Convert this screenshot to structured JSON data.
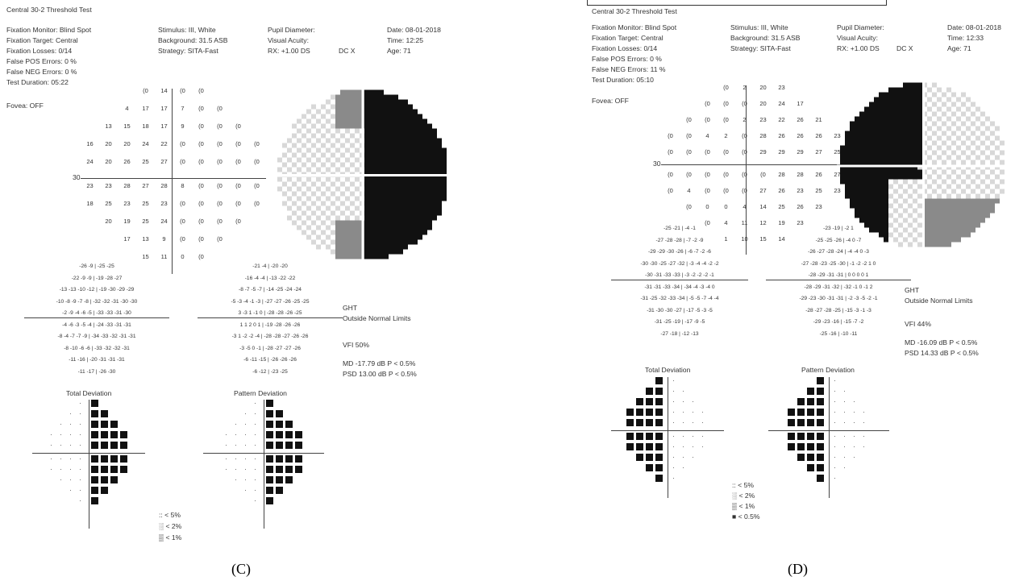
{
  "captions": {
    "c": "(C)",
    "d": "(D)"
  },
  "panel_c": {
    "title": "Central 30-2 Threshold Test",
    "col1": [
      "Fixation Monitor: Blind Spot",
      "Fixation Target: Central",
      "Fixation Losses: 0/14",
      "False POS Errors:  0 %",
      "False NEG Errors:  0 %",
      "Test Duration: 05:22"
    ],
    "fovea": "Fovea: OFF",
    "col2": [
      "Stimulus: III, White",
      "Background: 31.5 ASB",
      "Strategy: SITA-Fast"
    ],
    "col3": [
      "Pupil Diameter:",
      "Visual Acuity:",
      "RX: +1.00 DS"
    ],
    "col3_dc": "DC  X",
    "col4": [
      "Date: 08-01-2018",
      "Time: 12:25",
      "Age: 71"
    ],
    "axis_30": "30",
    "threshold_rows": [
      [
        "",
        "",
        "",
        "(0",
        "14",
        "(0",
        "(0",
        "",
        "",
        ""
      ],
      [
        "",
        "",
        "4",
        "17",
        "17",
        "7",
        "(0",
        "(0",
        "",
        ""
      ],
      [
        "",
        "13",
        "15",
        "18",
        "17",
        "9",
        "(0",
        "(0",
        "(0",
        ""
      ],
      [
        "16",
        "20",
        "20",
        "24",
        "22",
        "(0",
        "(0",
        "(0",
        "(0",
        "(0"
      ],
      [
        "24",
        "20",
        "26",
        "25",
        "27",
        "(0",
        "(0",
        "(0",
        "(0",
        "(0"
      ],
      [
        "23",
        "23",
        "28",
        "27",
        "28",
        "8",
        "(0",
        "(0",
        "(0",
        "(0"
      ],
      [
        "18",
        "25",
        "23",
        "25",
        "23",
        "(0",
        "(0",
        "(0",
        "(0",
        "(0"
      ],
      [
        "",
        "20",
        "19",
        "25",
        "24",
        "(0",
        "(0",
        "(0",
        "(0",
        ""
      ],
      [
        "",
        "",
        "17",
        "13",
        "9",
        "(0",
        "(0",
        "(0",
        "",
        ""
      ],
      [
        "",
        "",
        "",
        "15",
        "11",
        "0",
        "(0",
        "",
        "",
        ""
      ]
    ],
    "total_dev_rows": [
      "-26  -9  | -25  -25",
      "-22  -9  -9  | -19  -28  -27",
      "-13  -13  -10  -12  | -19  -30  -29  -29",
      "-10  -8  -9  -7  -8  | -32  -32  -31  -30  -30",
      "-2  -9  -4  -6  -5  | -33  -33  -31  -30",
      "-4  -6  -3  -5  -4  | -24  -33  -31  -31",
      "-8  -4  -7  -7  -9  | -34  -33  -32  -31  -31",
      "-8  -10  -6  -6  | -33  -32  -32  -31",
      "-11  -16  | -20  -31  -31  -31",
      "-11  -17  | -26  -30"
    ],
    "pattern_dev_rows": [
      "-21  -4  | -20  -20",
      "-16  -4  -4  | -13  -22  -22",
      "-8  -7  -5  -7  | -14  -25  -24  -24",
      "-5  -3  -4  -1  -3  | -27  -27  -26  -25  -25",
      "3  -3  1  -1  0  | -28  -28  -26  -25",
      "1  1  2  0  1  | -19  -28  -26  -26",
      "-3  1  -2  -2  -4  | -28  -28  -27  -26  -26",
      "-3  -5  0  -1  | -28  -27  -27  -26",
      "-6  -11  -15  | -26  -26  -26",
      "-6  -12  | -23  -25"
    ],
    "total_dev_label": "Total Deviation",
    "pattern_dev_label": "Pattern Deviation",
    "ght_label": "GHT",
    "ght_value": "Outside Normal Limits",
    "vfi": "VFI    50%",
    "md": "MD    -17.79 dB  P < 0.5%",
    "psd": "PSD   13.00 dB  P < 0.5%",
    "legend": [
      ":: < 5%",
      "░ < 2%",
      "▒ < 1%"
    ]
  },
  "panel_d": {
    "title": "Central 30-2 Threshold Test",
    "col1": [
      "Fixation Monitor: Blind Spot",
      "Fixation Target: Central",
      "Fixation Losses: 0/14",
      "False POS Errors:  0 %",
      "False NEG Errors:  11 %",
      "Test Duration: 05:10"
    ],
    "fovea": "Fovea: OFF",
    "col2": [
      "Stimulus: III, White",
      "Background: 31.5 ASB",
      "Strategy: SITA-Fast"
    ],
    "col3": [
      "Pupil Diameter:",
      "Visual Acuity:",
      "RX: +1.00 DS"
    ],
    "col3_dc": "DC  X",
    "col4": [
      "Date: 08-01-2018",
      "Time: 12:33",
      "Age: 71"
    ],
    "axis_30": "30",
    "threshold_rows": [
      [
        "",
        "",
        "",
        "(0",
        "2",
        "20",
        "23",
        "",
        "",
        ""
      ],
      [
        "",
        "",
        "(0",
        "(0",
        "(0",
        "20",
        "24",
        "17",
        "",
        ""
      ],
      [
        "",
        "(0",
        "(0",
        "(0",
        "2",
        "23",
        "22",
        "26",
        "21",
        ""
      ],
      [
        "(0",
        "(0",
        "4",
        "2",
        "(0",
        "28",
        "26",
        "26",
        "26",
        "23"
      ],
      [
        "(0",
        "(0",
        "(0",
        "(0",
        "(0",
        "29",
        "29",
        "29",
        "27",
        "25"
      ],
      [
        "(0",
        "(0",
        "(0",
        "(0",
        "(0",
        "(0",
        "28",
        "28",
        "26",
        "27"
      ],
      [
        "(0",
        "4",
        "(0",
        "(0",
        "(0",
        "27",
        "26",
        "23",
        "25",
        "23"
      ],
      [
        "",
        "(0",
        "0",
        "0",
        "4",
        "14",
        "25",
        "26",
        "23",
        ""
      ],
      [
        "",
        "",
        "(0",
        "4",
        "11",
        "12",
        "19",
        "23",
        "",
        ""
      ],
      [
        "",
        "",
        "",
        "1",
        "10",
        "15",
        "14",
        "",
        "",
        ""
      ]
    ],
    "total_dev_rows": [
      "-25  -21  | -4  -1",
      "-27  -28  -28  | -7  -2  -9",
      "-29  -29  -30  -26  | -6  -7  -2  -6",
      "-30  -30  -25  -27  -32  | -3  -4  -4  -2  -2",
      "-30  -31  -33  -33  | -3  -2  -2  -2  -1",
      "-31  -31  -33  -34  | -34  -4  -3  -4  0",
      "-31  -25  -32  -33  -34  | -5  -5  -7  -4  -4",
      "-31  -30  -30  -27  | -17  -5  -3  -5",
      "-31  -25  -19  | -17  -9  -5",
      "-27  -18  | -12  -13"
    ],
    "pattern_dev_rows": [
      "-23  -19  | -2  1",
      "-25  -25  -26  | -4  0  -7",
      "-26  -27  -28  -24  | -4  -4  0  -3",
      "-27  -28  -23  -25  -30  | -1  -2  -2  1  0",
      "-28  -29  -31  -31  | 0  0  0  0  1",
      "-28  -29  -31  -32  | -32  -1  0  -1  2",
      "-29  -23  -30  -31  -31  | -2  -3  -5  -2  -1",
      "-28  -27  -28  -25  | -15  -3  -1  -3",
      "-29  -23  -16  | -15  -7  -2",
      "-25  -16  | -10  -11"
    ],
    "total_dev_label": "Total Deviation",
    "pattern_dev_label": "Pattern Deviation",
    "ght_label": "GHT",
    "ght_value": "Outside Normal Limits",
    "vfi": "VFI    44%",
    "md": "MD    -16.09 dB  P < 0.5%",
    "psd": "PSD   14.33 dB  P < 0.5%",
    "legend": [
      ":: < 5%",
      "░ < 2%",
      "▒ < 1%",
      "■ < 0.5%"
    ]
  },
  "colors": {
    "dark_cell": "#111111",
    "gray_cell": "#8a8a8a",
    "light_cell": "#d8d8d8",
    "text": "#333333"
  }
}
